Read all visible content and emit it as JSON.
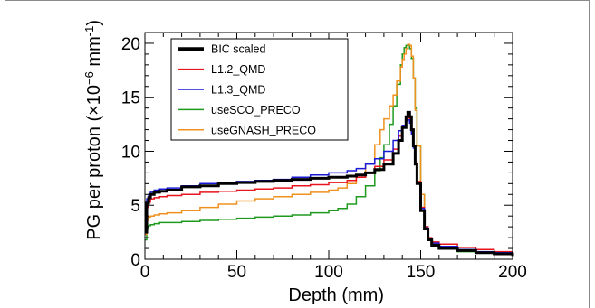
{
  "chart_data": {
    "type": "line",
    "xlabel": "Depth (mm)",
    "ylabel": {
      "prefix": "PG per proton (×10",
      "sup1": "−6",
      "mid": " mm",
      "sup2": "-1",
      "suffix": ")"
    },
    "xlim": [
      0,
      200
    ],
    "ylim": [
      0,
      21
    ],
    "xticks": [
      0,
      50,
      100,
      150,
      200
    ],
    "yticks": [
      0,
      5,
      10,
      15,
      20
    ],
    "grid": false,
    "legend_position": "top-left",
    "series": [
      {
        "name": "BIC scaled",
        "color": "#000000",
        "width": 3,
        "x": [
          0,
          1,
          2,
          3,
          5,
          8,
          12,
          20,
          30,
          40,
          50,
          60,
          70,
          80,
          90,
          100,
          110,
          115,
          120,
          125,
          130,
          135,
          138,
          140,
          142,
          143,
          144,
          145,
          146,
          147,
          148,
          150,
          152,
          154,
          156,
          160,
          170,
          180,
          190,
          200
        ],
        "y": [
          2.5,
          5.2,
          5.7,
          6.0,
          6.2,
          6.3,
          6.4,
          6.7,
          6.8,
          7.0,
          7.1,
          7.2,
          7.3,
          7.4,
          7.5,
          7.6,
          7.7,
          7.8,
          8.0,
          8.3,
          8.8,
          9.8,
          11.0,
          12.2,
          13.2,
          13.6,
          13.2,
          12.0,
          10.5,
          8.8,
          7.0,
          4.5,
          2.8,
          1.8,
          1.3,
          1.0,
          0.8,
          0.6,
          0.5,
          0.3
        ]
      },
      {
        "name": "L1.2_QMD",
        "color": "#e8141e",
        "width": 1.5,
        "x": [
          0,
          1,
          2,
          3,
          5,
          8,
          12,
          20,
          30,
          40,
          50,
          60,
          70,
          80,
          90,
          100,
          110,
          115,
          120,
          125,
          130,
          135,
          138,
          140,
          142,
          143,
          144,
          145,
          146,
          147,
          148,
          150,
          152,
          154,
          156,
          160,
          170,
          180,
          190,
          200
        ],
        "y": [
          2.5,
          4.8,
          5.3,
          5.6,
          5.7,
          5.8,
          5.9,
          6.0,
          6.2,
          6.3,
          6.4,
          6.5,
          6.6,
          6.8,
          6.9,
          7.1,
          7.3,
          7.6,
          8.0,
          8.6,
          9.2,
          10.2,
          11.4,
          12.2,
          12.9,
          13.1,
          12.7,
          11.8,
          10.5,
          9.0,
          7.2,
          4.8,
          3.0,
          2.0,
          1.6,
          1.4,
          1.1,
          0.9,
          0.7,
          0.5
        ]
      },
      {
        "name": "L1.3_QMD",
        "color": "#1a1ad6",
        "width": 1.5,
        "x": [
          0,
          1,
          2,
          3,
          5,
          8,
          12,
          20,
          30,
          40,
          50,
          60,
          70,
          80,
          90,
          100,
          110,
          115,
          120,
          125,
          130,
          135,
          138,
          140,
          142,
          143,
          144,
          145,
          146,
          147,
          148,
          150,
          152,
          154,
          156,
          160,
          170,
          180,
          190,
          200
        ],
        "y": [
          2.5,
          5.6,
          6.0,
          6.2,
          6.4,
          6.5,
          6.6,
          6.8,
          7.0,
          7.1,
          7.2,
          7.3,
          7.4,
          7.6,
          7.8,
          8.0,
          8.2,
          8.4,
          8.8,
          9.3,
          10.0,
          11.0,
          11.9,
          12.4,
          12.8,
          12.9,
          12.6,
          11.6,
          10.3,
          8.8,
          7.0,
          4.7,
          2.9,
          1.9,
          1.5,
          1.2,
          0.9,
          0.7,
          0.6,
          0.4
        ]
      },
      {
        "name": "useSCO_PRECO",
        "color": "#1f9a1f",
        "width": 1.5,
        "x": [
          0,
          1,
          2,
          3,
          5,
          8,
          12,
          20,
          30,
          40,
          50,
          60,
          70,
          80,
          90,
          100,
          105,
          110,
          115,
          120,
          125,
          128,
          130,
          133,
          135,
          137,
          139,
          140,
          141,
          142,
          143,
          144,
          145,
          146,
          147,
          148,
          150,
          152,
          154,
          156,
          160,
          170,
          180,
          190,
          200
        ],
        "y": [
          1.8,
          2.8,
          3.1,
          3.2,
          3.3,
          3.4,
          3.4,
          3.5,
          3.6,
          3.7,
          3.8,
          3.9,
          4.0,
          4.1,
          4.3,
          4.5,
          4.7,
          5.1,
          5.8,
          6.8,
          8.2,
          9.4,
          10.6,
          12.5,
          14.2,
          16.2,
          18.0,
          19.0,
          19.6,
          19.8,
          19.8,
          19.5,
          18.6,
          16.8,
          14.0,
          10.5,
          6.0,
          3.0,
          1.8,
          1.3,
          1.0,
          0.7,
          0.6,
          0.5,
          0.3
        ]
      },
      {
        "name": "useGNASH_PRECO",
        "color": "#f0901e",
        "width": 1.5,
        "x": [
          0,
          1,
          2,
          3,
          5,
          8,
          12,
          20,
          30,
          40,
          50,
          60,
          70,
          80,
          90,
          100,
          105,
          110,
          115,
          120,
          125,
          128,
          130,
          133,
          135,
          137,
          139,
          140,
          141,
          142,
          143,
          144,
          145,
          146,
          147,
          148,
          150,
          152,
          154,
          156,
          160,
          170,
          180,
          190,
          200
        ],
        "y": [
          2.3,
          3.6,
          3.9,
          4.0,
          4.1,
          4.2,
          4.3,
          4.5,
          4.8,
          5.1,
          5.4,
          5.6,
          5.8,
          6.0,
          6.2,
          6.4,
          6.6,
          7.0,
          7.6,
          8.8,
          10.6,
          12.0,
          13.0,
          14.2,
          15.2,
          16.5,
          17.8,
          18.5,
          19.0,
          19.5,
          19.9,
          19.8,
          18.8,
          16.8,
          13.8,
          10.5,
          6.0,
          3.0,
          1.9,
          1.4,
          1.1,
          0.8,
          0.6,
          0.5,
          0.3
        ]
      }
    ]
  }
}
